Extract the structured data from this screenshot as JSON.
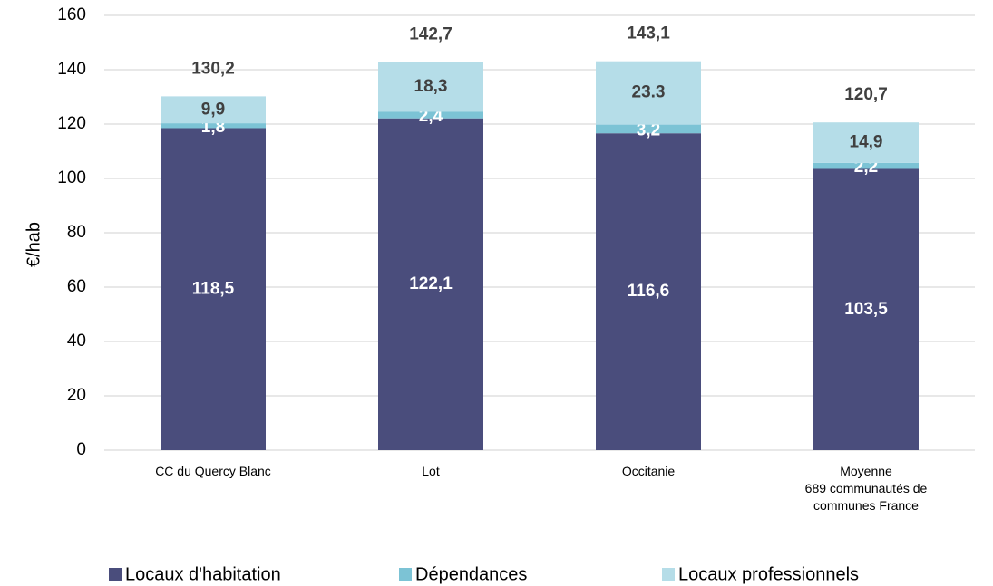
{
  "chart_data": {
    "type": "stacked_bar",
    "y_label": "€/hab",
    "categories": [
      "CC du Quercy Blanc",
      "Lot",
      "Occitanie",
      "Moyenne\n689 communautés de\ncommunes France"
    ],
    "series": [
      {
        "name": "Locaux d'habitation",
        "color": "#4a4d7c",
        "label_color": "#ffffff",
        "values": [
          118.5,
          122.1,
          116.6,
          103.5
        ],
        "value_labels": [
          "118,5",
          "122,1",
          "116,6",
          "103,5"
        ]
      },
      {
        "name": "Dépendances",
        "color": "#7cc3d5",
        "label_color": "#ffffff",
        "values": [
          1.8,
          2.4,
          3.2,
          2.2
        ],
        "value_labels": [
          "1,8",
          "2,4",
          "3,2",
          "2,2"
        ]
      },
      {
        "name": "Locaux professionnels",
        "color": "#b5dde8",
        "label_color": "#404040",
        "values": [
          9.9,
          18.3,
          23.3,
          14.9
        ],
        "value_labels": [
          "9,9",
          "18,3",
          "23.3",
          "14,9"
        ]
      }
    ],
    "totals": [
      130.2,
      142.7,
      143.1,
      120.7
    ],
    "total_labels": [
      "130,2",
      "142,7",
      "143,1",
      "120,7"
    ],
    "ylim": [
      0,
      160
    ],
    "yticks": [
      0,
      20,
      40,
      60,
      80,
      100,
      120,
      140,
      160
    ],
    "grid": true
  }
}
